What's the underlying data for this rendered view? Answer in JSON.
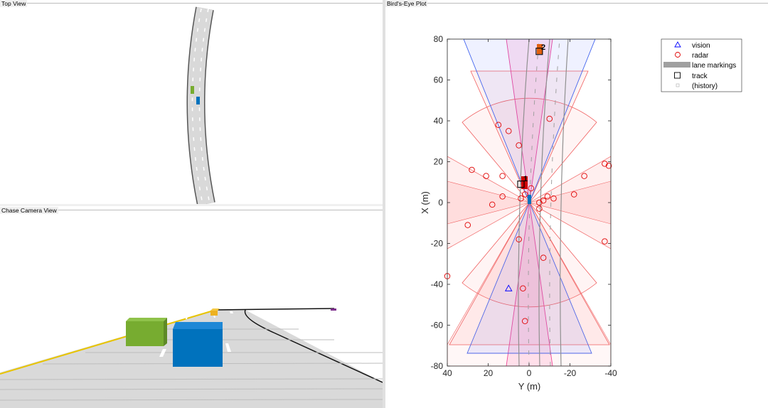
{
  "panels": {
    "top_view": "Top View",
    "chase_camera_view": "Chase Camera View",
    "birds_eye_plot": "Bird's-Eye Plot"
  },
  "colors": {
    "ego": "#0072bd",
    "lead_car": "#77ac30",
    "far_car": "#edb120",
    "oncoming": "#7e2f8e",
    "vision": "#0000ff",
    "radar": "#e00000",
    "lane_markings": "#a0a0a0"
  },
  "legend": {
    "vision": "vision",
    "radar": "radar",
    "lane_markings": "lane markings",
    "track": "track",
    "history": "(history)"
  },
  "track_ids": [
    "1",
    "2"
  ],
  "chart_data": {
    "type": "scatter",
    "title": "Bird's-Eye Plot",
    "xlabel": "Y (m)",
    "ylabel": "X (m)",
    "xlim": [
      40,
      -40
    ],
    "ylim": [
      -80,
      80
    ],
    "x_ticks": [
      40,
      20,
      0,
      -20,
      -40
    ],
    "y_ticks": [
      80,
      60,
      40,
      20,
      0,
      -20,
      -40,
      -60,
      -80
    ],
    "series": [
      {
        "name": "vision",
        "marker": "triangle",
        "points": [
          [
            10,
            -42
          ]
        ]
      },
      {
        "name": "radar",
        "marker": "circle",
        "points": [
          [
            15,
            38
          ],
          [
            10,
            35
          ],
          [
            5,
            28
          ],
          [
            -10,
            41
          ],
          [
            28,
            16
          ],
          [
            21,
            13
          ],
          [
            13,
            13
          ],
          [
            13,
            3
          ],
          [
            18,
            -1
          ],
          [
            2,
            4
          ],
          [
            -1,
            7
          ],
          [
            -5,
            -3
          ],
          [
            -5,
            0
          ],
          [
            -7,
            1
          ],
          [
            -27,
            13
          ],
          [
            -22,
            4
          ],
          [
            -37,
            19
          ],
          [
            -39,
            18
          ],
          [
            -37,
            -19
          ],
          [
            -7,
            -27
          ],
          [
            -9,
            3
          ],
          [
            -12,
            2
          ],
          [
            3,
            -42
          ],
          [
            2,
            -58
          ],
          [
            5,
            -18
          ],
          [
            30,
            -11
          ],
          [
            40,
            -36
          ],
          [
            4,
            2
          ]
        ]
      },
      {
        "name": "track",
        "marker": "square",
        "points": [
          [
            4,
            9
          ],
          [
            -5,
            74
          ]
        ]
      }
    ]
  }
}
